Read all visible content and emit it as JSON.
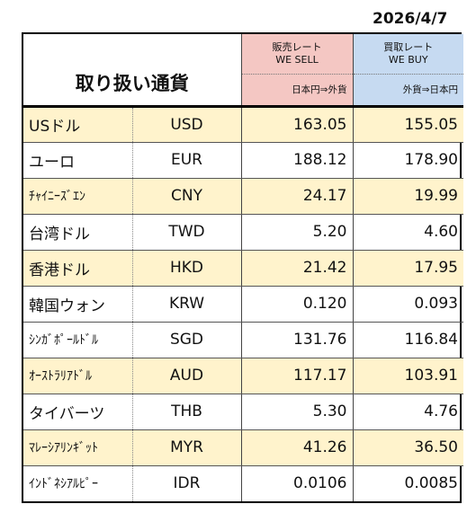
{
  "date": "2026/4/7",
  "header": {
    "title": "取り扱い通貨",
    "sell_line1": "販売レート",
    "sell_line2": "WE SELL",
    "sell_sub": "日本円⇒外貨",
    "buy_line1": "買取レート",
    "buy_line2": "WE BUY",
    "buy_sub": "外貨⇒日本円"
  },
  "rows": [
    {
      "name": "USドル",
      "code": "USD",
      "sell": "163.05",
      "buy": "155.05"
    },
    {
      "name": "ユーロ",
      "code": "EUR",
      "sell": "188.12",
      "buy": "178.90"
    },
    {
      "name": "ﾁｬｲﾆｰｽﾞｴﾝ",
      "code": "CNY",
      "sell": "24.17",
      "buy": "19.99"
    },
    {
      "name": "台湾ドル",
      "code": "TWD",
      "sell": "5.20",
      "buy": "4.60"
    },
    {
      "name": "香港ドル",
      "code": "HKD",
      "sell": "21.42",
      "buy": "17.95"
    },
    {
      "name": "韓国ウォン",
      "code": "KRW",
      "sell": "0.120",
      "buy": "0.093"
    },
    {
      "name": "ｼﾝｶﾞﾎﾟｰﾙﾄﾞﾙ",
      "code": "SGD",
      "sell": "131.76",
      "buy": "116.84"
    },
    {
      "name": "ｵｰｽﾄﾗﾘｱﾄﾞﾙ",
      "code": "AUD",
      "sell": "117.17",
      "buy": "103.91"
    },
    {
      "name": "タイバーツ",
      "code": "THB",
      "sell": "5.30",
      "buy": "4.76"
    },
    {
      "name": "ﾏﾚｰｼｱﾘﾝｷﾞｯﾄ",
      "code": "MYR",
      "sell": "41.26",
      "buy": "36.50"
    },
    {
      "name": "ｲﾝﾄﾞﾈｼｱﾙﾋﾟｰ",
      "code": "IDR",
      "sell": "0.0106",
      "buy": "0.0085"
    }
  ],
  "colors": {
    "sell_header": "#f4c7c3",
    "buy_header": "#c6daf1",
    "highlight_row": "#fff3cc"
  }
}
